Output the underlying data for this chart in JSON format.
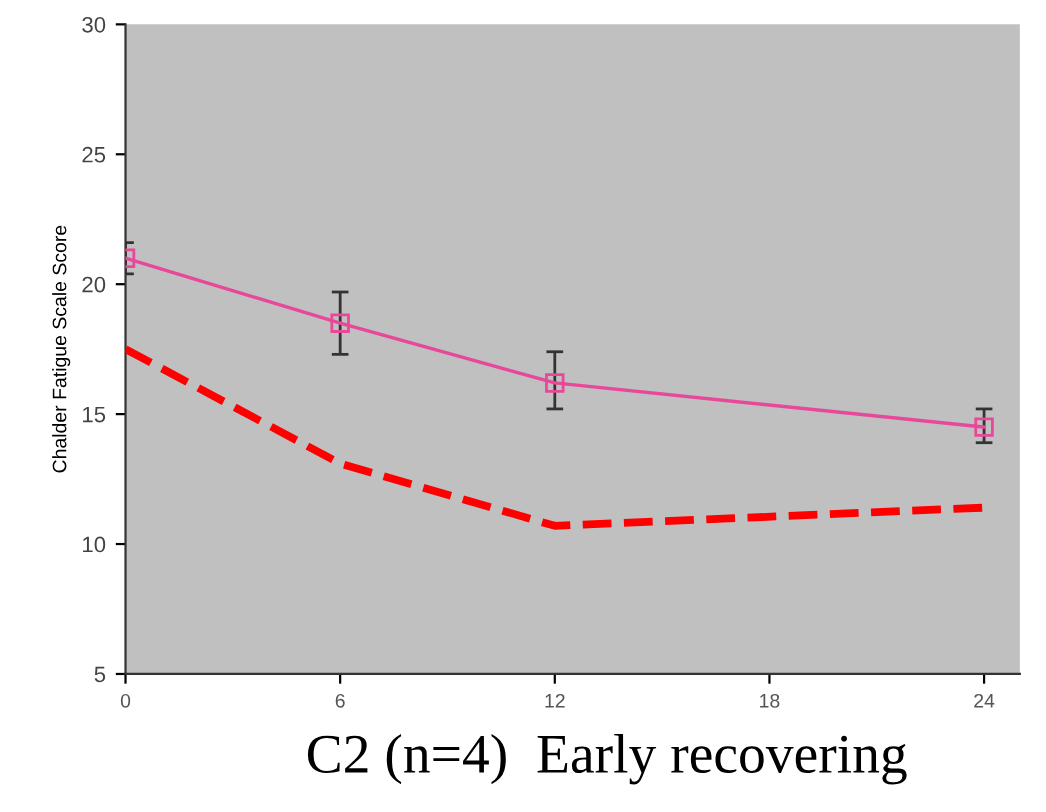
{
  "chart_data": {
    "type": "line",
    "ylabel": "Chalder Fatigue Scale Score",
    "x": [
      0,
      6,
      12,
      24
    ],
    "series": [
      {
        "color": "#e8489a",
        "values": [
          21.0,
          18.5,
          16.2,
          14.5
        ],
        "errors": [
          [
            20.4,
            21.6
          ],
          [
            17.3,
            19.7
          ],
          [
            15.2,
            17.4
          ],
          [
            13.9,
            15.2
          ]
        ],
        "marker": "square",
        "line_style": "solid"
      },
      {
        "color": "#ff0000",
        "values": [
          17.5,
          13.1,
          10.7,
          11.4
        ],
        "marker": "none",
        "line_style": "dashed"
      }
    ],
    "xlim": [
      0,
      25
    ],
    "xticks": [
      0,
      6,
      12,
      18,
      24
    ],
    "ylim": [
      5,
      30
    ],
    "yticks": [
      5,
      10,
      15,
      20,
      25,
      30
    ],
    "grid": false,
    "legend": false,
    "annotations": [
      "C2 (n=4)  Early recovering"
    ]
  }
}
